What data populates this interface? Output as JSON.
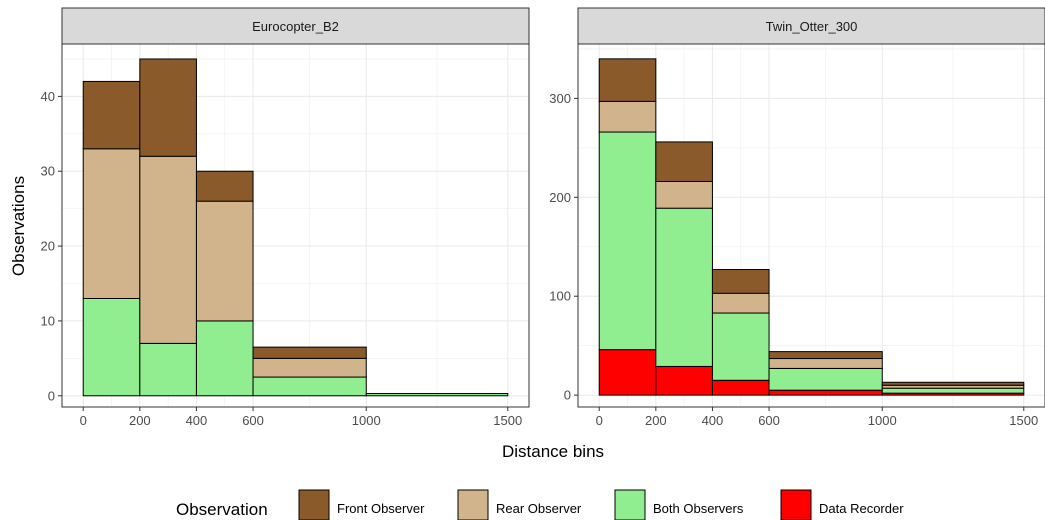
{
  "chart_data": {
    "type": "bar",
    "subtype": "stacked-histogram-facets",
    "xlabel": "Distance bins",
    "ylabel": "Observations",
    "bins": [
      [
        0,
        200
      ],
      [
        200,
        400
      ],
      [
        400,
        600
      ],
      [
        600,
        1000
      ],
      [
        1000,
        1500
      ]
    ],
    "x_ticks": [
      0,
      200,
      400,
      600,
      1000,
      1500
    ],
    "legend": {
      "title": "Observation",
      "position": "bottom",
      "entries": [
        {
          "name": "Front Observer",
          "color": "#8B5A2B"
        },
        {
          "name": "Rear Observer",
          "color": "#D2B48C"
        },
        {
          "name": "Both Observers",
          "color": "#90EE90"
        },
        {
          "name": "Data Recorder",
          "color": "#FF0000"
        }
      ]
    },
    "facets": [
      {
        "title": "Eurocopter_B2",
        "ylim": [
          -1.5,
          47
        ],
        "y_ticks": [
          0,
          10,
          20,
          30,
          40
        ],
        "series": [
          {
            "name": "Data Recorder",
            "values": [
              0,
              0,
              0,
              0,
              0
            ]
          },
          {
            "name": "Both Observers",
            "values": [
              13,
              7,
              10,
              2.5,
              0.3
            ]
          },
          {
            "name": "Rear Observer",
            "values": [
              20,
              25,
              16,
              2.5,
              0
            ]
          },
          {
            "name": "Front Observer",
            "values": [
              9,
              13,
              4,
              1.5,
              0
            ]
          }
        ]
      },
      {
        "title": "Twin_Otter_300",
        "ylim": [
          -12,
          355
        ],
        "y_ticks": [
          0,
          100,
          200,
          300
        ],
        "series": [
          {
            "name": "Data Recorder",
            "values": [
              46,
              29,
              15,
              5,
              2
            ]
          },
          {
            "name": "Both Observers",
            "values": [
              220,
              160,
              68,
              22,
              5
            ]
          },
          {
            "name": "Rear Observer",
            "values": [
              31,
              27,
              20,
              10,
              3
            ]
          },
          {
            "name": "Front Observer",
            "values": [
              43,
              40,
              24,
              7,
              3
            ]
          }
        ]
      }
    ]
  }
}
